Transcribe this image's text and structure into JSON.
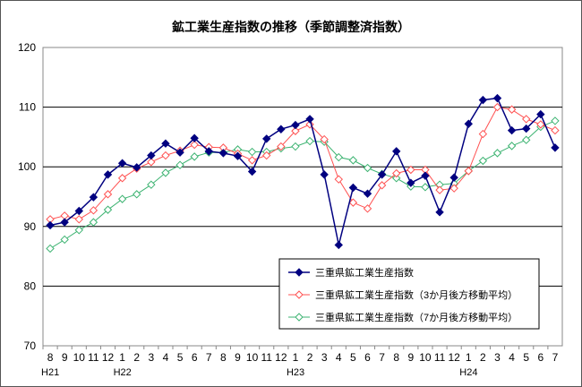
{
  "chart_data": {
    "type": "line",
    "title": "鉱工業生産指数の推移（季節調整済指数）",
    "xlabel": "",
    "ylabel": "",
    "ylim": [
      70,
      120
    ],
    "yticks": [
      70,
      80,
      90,
      100,
      110,
      120
    ],
    "grid": "horizontal",
    "legend_position": "lower-right",
    "categories": [
      "8",
      "9",
      "10",
      "11",
      "12",
      "1",
      "2",
      "3",
      "4",
      "5",
      "6",
      "7",
      "8",
      "9",
      "10",
      "11",
      "12",
      "1",
      "2",
      "3",
      "4",
      "5",
      "6",
      "7",
      "8",
      "9",
      "10",
      "11",
      "12",
      "1",
      "2",
      "3",
      "4",
      "5",
      "6",
      "7"
    ],
    "era_labels": [
      {
        "label": "H21",
        "index": 0
      },
      {
        "label": "H22",
        "index": 5
      },
      {
        "label": "H23",
        "index": 17
      },
      {
        "label": "H24",
        "index": 29
      }
    ],
    "series": [
      {
        "name": "三重県鉱工業生産指数",
        "color": "#000080",
        "marker": "diamond-filled",
        "values": [
          90.2,
          90.7,
          92.6,
          94.9,
          98.7,
          100.6,
          99.9,
          101.9,
          103.9,
          102.4,
          104.8,
          102.6,
          102.3,
          101.8,
          99.2,
          104.7,
          106.3,
          107.0,
          108.0,
          98.7,
          86.9,
          96.5,
          95.5,
          98.7,
          102.6,
          97.3,
          98.5,
          92.4,
          98.2,
          107.2,
          111.2,
          111.5,
          106.1,
          106.4,
          108.8,
          103.2
        ]
      },
      {
        "name": "三重県鉱工業生産指数（3か月後方移動平均）",
        "color": "#ff5050",
        "marker": "diamond-open",
        "values": [
          91.2,
          91.8,
          91.2,
          92.7,
          95.4,
          98.1,
          99.7,
          100.8,
          101.9,
          102.7,
          103.7,
          103.3,
          103.2,
          102.2,
          101.1,
          101.9,
          103.4,
          106.0,
          107.1,
          104.6,
          97.9,
          94.0,
          93.0,
          96.9,
          98.9,
          99.5,
          99.5,
          96.1,
          96.4,
          99.3,
          105.5,
          110.0,
          109.6,
          108.0,
          107.1,
          106.1
        ]
      },
      {
        "name": "三重県鉱工業生産指数（7か月後方移動平均）",
        "color": "#3cb371",
        "marker": "diamond-open",
        "values": [
          86.3,
          87.8,
          89.4,
          90.7,
          92.8,
          94.6,
          95.4,
          97.0,
          99.0,
          100.3,
          101.7,
          102.4,
          102.4,
          102.9,
          102.5,
          102.5,
          103.1,
          103.4,
          104.3,
          104.2,
          101.6,
          101.1,
          99.8,
          98.8,
          98.1,
          96.7,
          96.6,
          97.0,
          97.2,
          99.3,
          101.0,
          102.3,
          103.5,
          104.5,
          106.7,
          107.7
        ]
      }
    ]
  }
}
